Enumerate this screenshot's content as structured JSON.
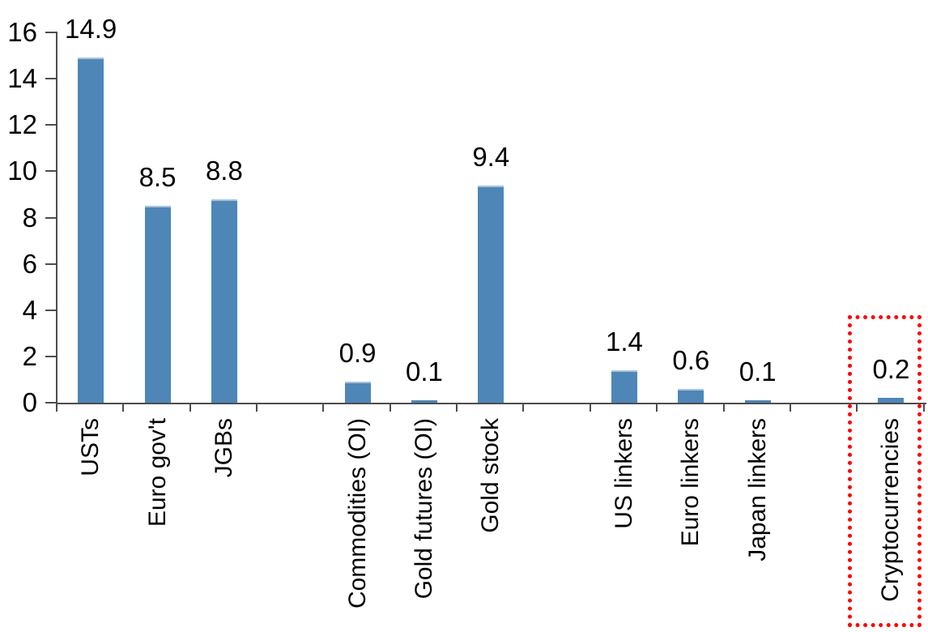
{
  "chart_data": {
    "type": "bar",
    "title": "",
    "xlabel": "",
    "ylabel": "",
    "categories": [
      "USTs",
      "Euro gov't",
      "JGBs",
      "Commodities (OI)",
      "Gold futures (OI)",
      "Gold stock",
      "US linkers",
      "Euro linkers",
      "Japan linkers",
      "Cryptocurrencies"
    ],
    "values": [
      14.9,
      8.5,
      8.8,
      0.9,
      0.1,
      9.4,
      1.4,
      0.6,
      0.1,
      0.2
    ],
    "value_labels": [
      "14.9",
      "8.5",
      "8.8",
      "0.9",
      "0.1",
      "9.4",
      "1.4",
      "0.6",
      "0.1",
      "0.2"
    ],
    "ylim": [
      0,
      16
    ],
    "ytick_step": 2,
    "ytick_labels": [
      "0",
      "2",
      "4",
      "6",
      "8",
      "10",
      "12",
      "14",
      "16"
    ],
    "grid": "off",
    "legend": "none",
    "bar_color": "#4e86b8",
    "axis_color": "#4d4d4d",
    "text_color": "#000000",
    "highlight": {
      "category": "Cryptocurrencies",
      "style": "red-dotted-box",
      "color": "#ff0000"
    },
    "slot_layout": {
      "total_slots": 13,
      "category_slots": [
        0,
        1,
        2,
        4,
        5,
        6,
        8,
        9,
        10,
        12
      ]
    }
  }
}
